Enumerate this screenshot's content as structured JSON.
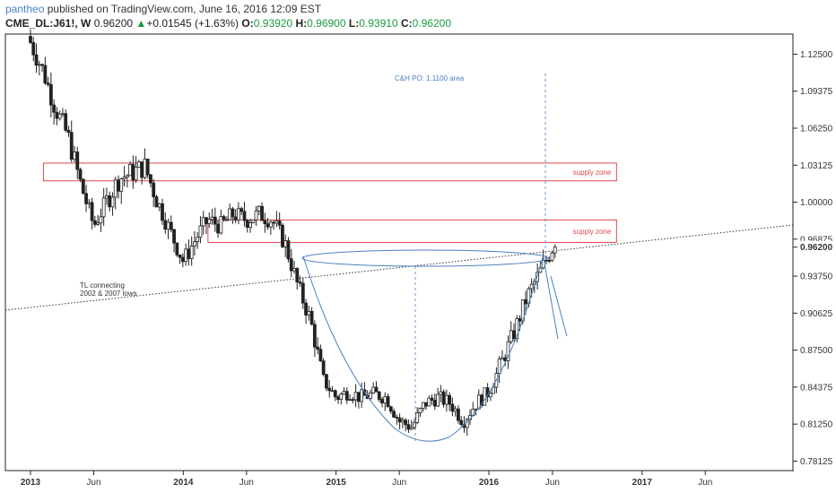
{
  "header": {
    "user": "pantheo",
    "published": " published on TradingView.com, June 16, 2016 12:09 EST",
    "symbol": "CME_DL:J61!, W",
    "price": "0.96200",
    "change_arrow": "▲",
    "change": "+0.01545 (+1.63%)",
    "open_label": "O:",
    "open": "0.93920",
    "high_label": "H:",
    "high": "0.96900",
    "low_label": "L:",
    "low": "0.93910",
    "close_label": "C:",
    "close": "0.96200"
  },
  "colors": {
    "candle_up": "#ffffff",
    "candle_down": "#222222",
    "supply_zone": "#e0474c",
    "pattern": "#4a7fc1",
    "trendline": "#333333"
  },
  "chart_data": {
    "type": "candlestick",
    "timeframe": "weekly",
    "x_ticks": [
      {
        "label": "2013",
        "year": true,
        "date": "2013-01"
      },
      {
        "label": "Jun",
        "year": false,
        "date": "2013-06"
      },
      {
        "label": "2014",
        "year": true,
        "date": "2014-01"
      },
      {
        "label": "Jun",
        "year": false,
        "date": "2014-06"
      },
      {
        "label": "2015",
        "year": true,
        "date": "2015-01"
      },
      {
        "label": "Jun",
        "year": false,
        "date": "2015-06"
      },
      {
        "label": "2016",
        "year": true,
        "date": "2016-01"
      },
      {
        "label": "Jun",
        "year": false,
        "date": "2016-06"
      },
      {
        "label": "2017",
        "year": true,
        "date": "2017-01"
      },
      {
        "label": "Jun",
        "year": false,
        "date": "2017-06"
      }
    ],
    "y_ticks": [
      "1.12500",
      "1.09375",
      "1.06250",
      "1.03125",
      "1.00000",
      "0.96875",
      "0.93750",
      "0.90625",
      "0.87500",
      "0.84375",
      "0.81250",
      "0.78125"
    ],
    "ylim": [
      0.774,
      1.142
    ],
    "last_price": "0.96200",
    "series_close": [
      [
        "2013-01",
        1.135
      ],
      [
        "2013-02",
        1.11
      ],
      [
        "2013-03",
        1.08
      ],
      [
        "2013-04",
        1.055
      ],
      [
        "2013-05",
        1.015
      ],
      [
        "2013-06",
        0.98
      ],
      [
        "2013-07",
        1.0
      ],
      [
        "2013-08",
        1.02
      ],
      [
        "2013-09",
        1.025
      ],
      [
        "2013-10",
        1.03
      ],
      [
        "2013-11",
        1.0
      ],
      [
        "2013-12",
        0.975
      ],
      [
        "2014-01",
        0.95
      ],
      [
        "2014-02",
        0.97
      ],
      [
        "2014-03",
        0.985
      ],
      [
        "2014-04",
        0.98
      ],
      [
        "2014-05",
        0.99
      ],
      [
        "2014-06",
        0.985
      ],
      [
        "2014-07",
        0.99
      ],
      [
        "2014-08",
        0.985
      ],
      [
        "2014-09",
        0.965
      ],
      [
        "2014-10",
        0.93
      ],
      [
        "2014-11",
        0.9
      ],
      [
        "2014-12",
        0.85
      ],
      [
        "2015-01",
        0.835
      ],
      [
        "2015-02",
        0.84
      ],
      [
        "2015-03",
        0.835
      ],
      [
        "2015-04",
        0.838
      ],
      [
        "2015-05",
        0.835
      ],
      [
        "2015-06",
        0.815
      ],
      [
        "2015-07",
        0.81
      ],
      [
        "2015-08",
        0.83
      ],
      [
        "2015-09",
        0.835
      ],
      [
        "2015-10",
        0.83
      ],
      [
        "2015-11",
        0.815
      ],
      [
        "2015-12",
        0.83
      ],
      [
        "2016-01",
        0.84
      ],
      [
        "2016-02",
        0.865
      ],
      [
        "2016-03",
        0.89
      ],
      [
        "2016-04",
        0.92
      ],
      [
        "2016-05",
        0.94
      ],
      [
        "2016-06",
        0.962
      ]
    ],
    "annotations": [
      {
        "text": "supply zone",
        "y_range": [
          1.018,
          1.033
        ],
        "x_range": [
          "2013-02",
          "2016-11"
        ]
      },
      {
        "text": "supply zone",
        "y_range": [
          0.966,
          0.985
        ],
        "x_range": [
          "2014-03",
          "2016-11"
        ]
      },
      {
        "text": "C&H PO: 1.1100 area"
      },
      {
        "text_line1": "TL connecting",
        "text_line2": "2002 & 2007 lows"
      }
    ]
  }
}
